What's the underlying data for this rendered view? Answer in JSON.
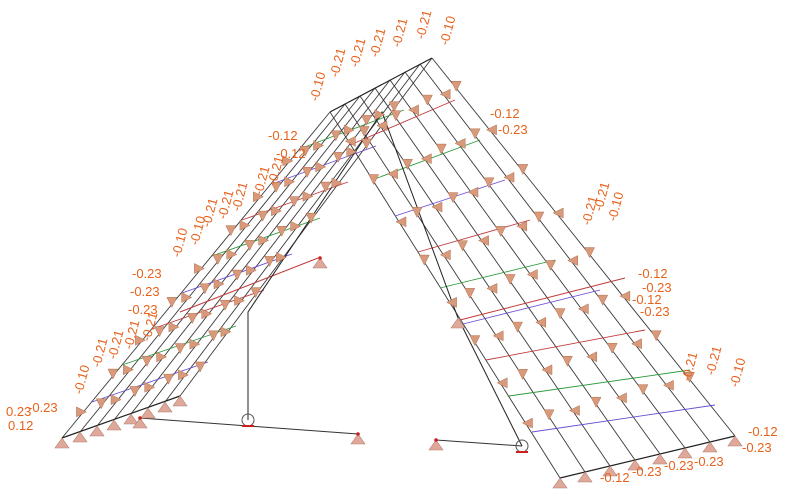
{
  "view": {
    "background_color": "#ffffff",
    "label_color": "#e8621c",
    "load_arrow_color": "#d89a7a",
    "member_color": "#202020",
    "support_color": "#e0a89a",
    "node_color": "#cc2020"
  },
  "left_slope": {
    "ridge_labels": [
      "-0.10",
      "-0.21",
      "-0.21",
      "-0.21",
      "-0.21",
      "-0.21",
      "-0.10"
    ],
    "upper_edge_labels": [
      "-0.10",
      "-0.10",
      "-0.21",
      "-0.21",
      "-0.21",
      "-0.21",
      "-0.21"
    ],
    "lower_edge_labels": [
      "-0.23",
      "-0.23",
      "-0.23",
      "-0.12",
      "-0.12"
    ],
    "eave_labels": [
      "-0.10",
      "-0.21",
      "-0.21",
      "-0.21",
      "-0.21",
      "0.23",
      "-0.23",
      "0.12"
    ]
  },
  "right_slope": {
    "crown_labels": [
      "-0.12",
      "-0.23",
      "-0.21",
      "-0.21",
      "-0.10"
    ],
    "side_labels": [
      "-0.12",
      "-0.23",
      "-0.23",
      "-0.12",
      "-0.21",
      "-0.21",
      "-0.10"
    ],
    "eave_labels": [
      "-0.12",
      "-0.23",
      "-0.23",
      "-0.23",
      "-0.23",
      "-0.12"
    ]
  }
}
